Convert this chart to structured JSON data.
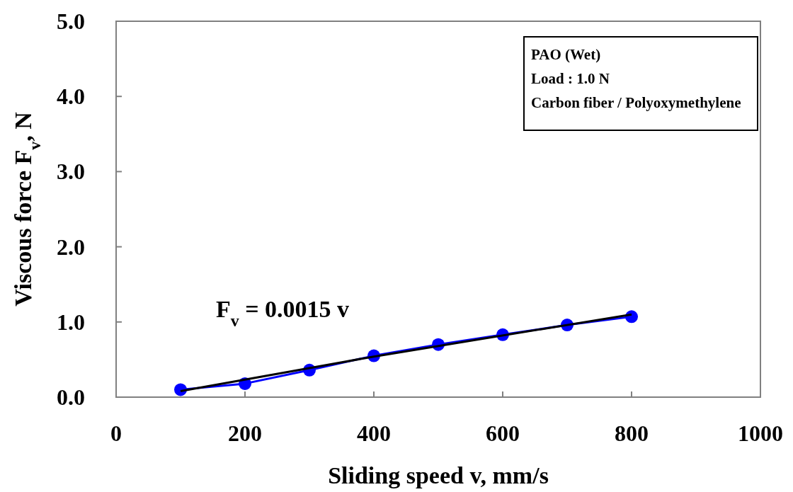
{
  "chart_data": {
    "type": "line",
    "xlabel": "Sliding speed v, mm/s",
    "ylabel": "Viscous force F$_{v}$, N",
    "xlim": [
      0,
      1000
    ],
    "xticks": [
      0,
      200,
      400,
      600,
      800,
      1000
    ],
    "ylim": [
      0,
      5
    ],
    "yticks": [
      {
        "value": 0,
        "label": "0.0"
      },
      {
        "value": 1,
        "label": "1.0"
      },
      {
        "value": 2,
        "label": "2.0"
      },
      {
        "value": 3,
        "label": "3.0"
      },
      {
        "value": 4,
        "label": "4.0"
      },
      {
        "value": 5,
        "label": "5.0"
      }
    ],
    "grid": false,
    "series": [
      {
        "type": "line",
        "color": "#0000ff",
        "marker": "circle",
        "x": [
          100,
          200,
          300,
          400,
          500,
          600,
          700,
          800
        ],
        "values": [
          0.1,
          0.18,
          0.36,
          0.55,
          0.7,
          0.83,
          0.96,
          1.07
        ]
      },
      {
        "color": "#000000",
        "marker": "none",
        "x": [
          100,
          400,
          800
        ],
        "values": [
          0.08,
          0.54,
          1.1
        ]
      }
    ],
    "annotations": [
      "PAO (Wet)",
      "Load : 1.0 N",
      "Carbon fiber / Polyoxymethylene",
      "F$_{v}$ = 0.0015 v"
    ]
  }
}
